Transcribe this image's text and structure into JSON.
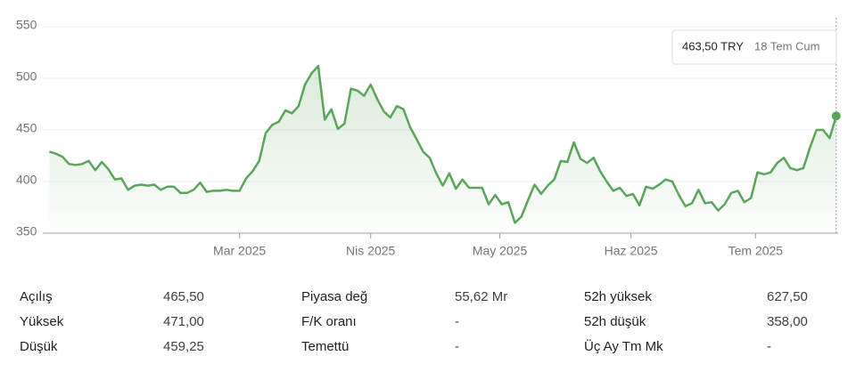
{
  "chart_data": {
    "type": "line",
    "color": "#5aa55a",
    "values": [
      429,
      427,
      424,
      417,
      416,
      417,
      420,
      411,
      419,
      412,
      402,
      403,
      392,
      396,
      397,
      396,
      397,
      392,
      395,
      395,
      389,
      389,
      392,
      399,
      390,
      391,
      391,
      392,
      391,
      391,
      403,
      410,
      420,
      447,
      455,
      458,
      469,
      466,
      473,
      494,
      505,
      512,
      460,
      470,
      451,
      456,
      490,
      488,
      483,
      494,
      480,
      468,
      462,
      473,
      470,
      453,
      441,
      429,
      423,
      408,
      396,
      408,
      393,
      402,
      394,
      394,
      394,
      378,
      387,
      378,
      380,
      360,
      366,
      382,
      397,
      388,
      396,
      402,
      420,
      419,
      438,
      422,
      418,
      423,
      410,
      400,
      391,
      394,
      386,
      388,
      377,
      395,
      393,
      397,
      402,
      400,
      387,
      376,
      379,
      392,
      379,
      380,
      372,
      378,
      389,
      391,
      380,
      384,
      409,
      407,
      409,
      418,
      423,
      413,
      411,
      413,
      433,
      450,
      450,
      442,
      463.5
    ],
    "xlim": [
      -1,
      120.3
    ],
    "xticks": [
      {
        "value": 29,
        "label": "Mar 2025"
      },
      {
        "value": 49,
        "label": "Nis 2025"
      },
      {
        "value": 68.7,
        "label": "May 2025"
      },
      {
        "value": 88.7,
        "label": "Haz 2025"
      },
      {
        "value": 107.7,
        "label": "Tem 2025"
      }
    ],
    "ylim": [
      350,
      550
    ],
    "yticks": [
      350,
      400,
      450,
      500,
      550
    ],
    "grid": true,
    "tooltip": {
      "price": "463,50 TRY",
      "date": "18 Tem Cum"
    }
  },
  "stats": [
    [
      [
        "Açılış",
        "465,50"
      ],
      [
        "Piyasa değ",
        "55,62 Mr"
      ],
      [
        "52h yüksek",
        "627,50"
      ]
    ],
    [
      [
        "Yüksek",
        "471,00"
      ],
      [
        "F/K oranı",
        "-"
      ],
      [
        "52h düşük",
        "358,00"
      ]
    ],
    [
      [
        "Düşük",
        "459,25"
      ],
      [
        "Temettü",
        "-"
      ],
      [
        "Üç Ay Tm Mk",
        "-"
      ]
    ]
  ]
}
